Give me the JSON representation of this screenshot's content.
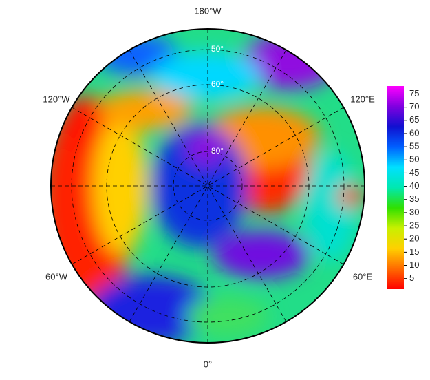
{
  "map": {
    "longitude_labels": [
      "180°W",
      "120°W",
      "120°E",
      "60°W",
      "60°E",
      "0°"
    ],
    "latitude_labels": [
      "50°",
      "60°",
      "80°"
    ],
    "colorbar": {
      "ticks": [
        5,
        10,
        15,
        20,
        25,
        30,
        35,
        40,
        45,
        50,
        55,
        60,
        65,
        70,
        75
      ],
      "lim": [
        1,
        78
      ],
      "colors": [
        "#ff0000",
        "#ff6a00",
        "#ffd000",
        "#c8f000",
        "#30e000",
        "#00e8b0",
        "#00e0ff",
        "#0060ff",
        "#1010d0",
        "#8000e0",
        "#ff00ff"
      ]
    }
  }
}
